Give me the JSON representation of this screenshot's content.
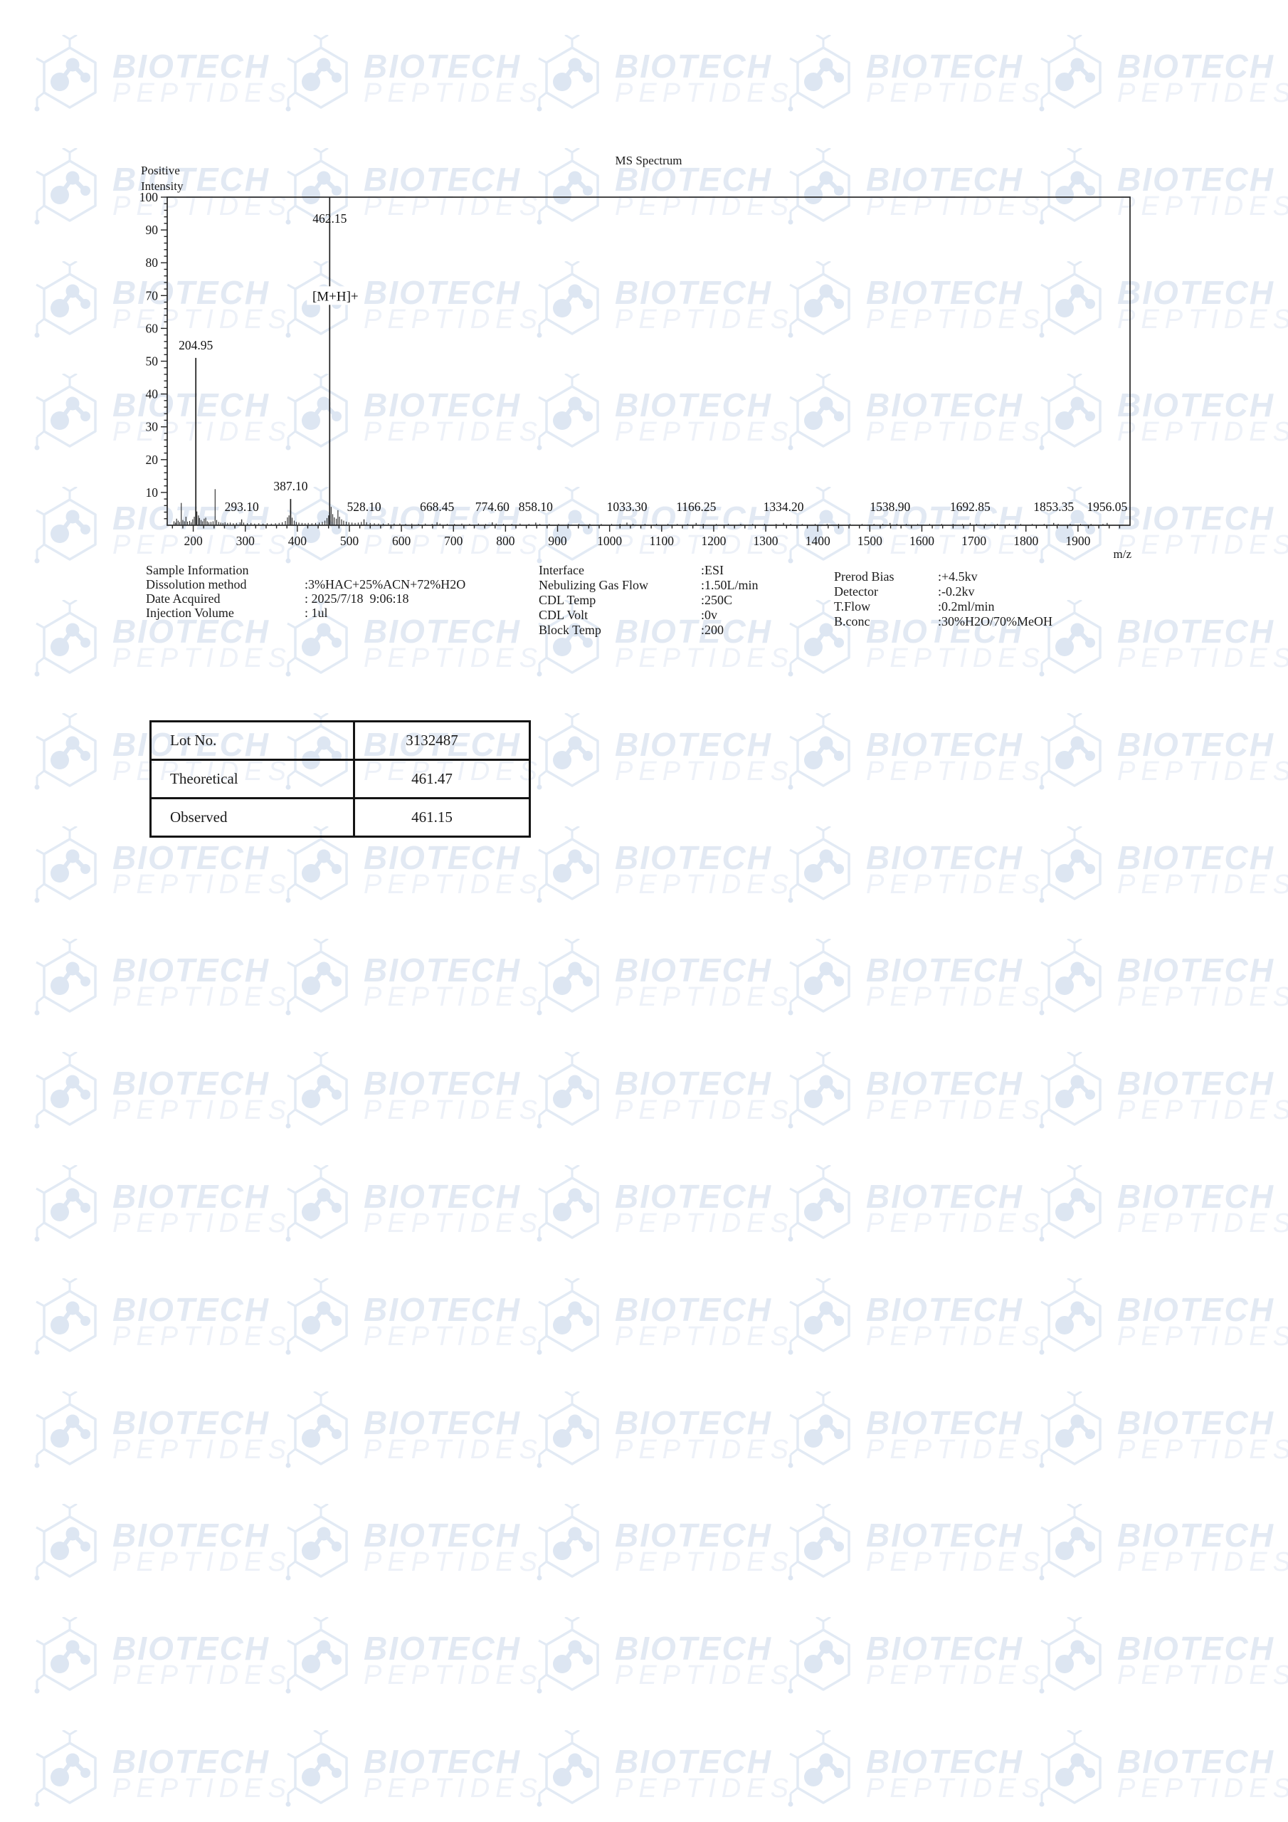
{
  "watermark": {
    "line1": "BIOTECH",
    "line2": "PEPTIDES",
    "icon": "hexagon-molecule-logo",
    "color_brand": "#e2e9f3",
    "color_sub": "#edf1f8",
    "color_icon_stroke": "#e2eaf4",
    "color_icon_fill": "#dde6f2"
  },
  "chart_data": {
    "type": "bar",
    "subtype": "mass-spectrum-stick-plot",
    "title": "MS Spectrum",
    "ylabel_line1": "Positive",
    "ylabel_line2": "Intensity",
    "xlabel": "m/z",
    "xlim": [
      150,
      2000
    ],
    "ylim": [
      0,
      100
    ],
    "x_major_step": 100,
    "x_minor_step": 20,
    "x_label_range": [
      200,
      1900
    ],
    "y_major_step": 10,
    "y_minor_step": 2,
    "grid": false,
    "legend": "none",
    "peaks": [
      {
        "m": 204.95,
        "i": 51,
        "label": "204.95"
      },
      {
        "m": 293.1,
        "i": 1.8,
        "label": "293.10"
      },
      {
        "m": 387.1,
        "i": 8,
        "label": "387.10"
      },
      {
        "m": 462.15,
        "i": 100,
        "label": "462.15"
      },
      {
        "m": 528.1,
        "i": 1.8,
        "label": "528.10"
      },
      {
        "m": 668.45,
        "i": 0.9,
        "label": "668.45"
      },
      {
        "m": 774.6,
        "i": 0.9,
        "label": "774.60"
      },
      {
        "m": 858.1,
        "i": 0.8,
        "label": "858.10"
      },
      {
        "m": 1033.3,
        "i": 0.8,
        "label": "1033.30"
      },
      {
        "m": 1166.25,
        "i": 0.7,
        "label": "1166.25"
      },
      {
        "m": 1334.2,
        "i": 0.7,
        "label": "1334.20"
      },
      {
        "m": 1538.9,
        "i": 0.7,
        "label": "1538.90"
      },
      {
        "m": 1692.85,
        "i": 0.7,
        "label": "1692.85"
      },
      {
        "m": 1853.35,
        "i": 0.7,
        "label": "1853.35"
      },
      {
        "m": 1956.05,
        "i": 0.7,
        "label": "1956.05"
      }
    ],
    "minor_peaks": [
      [
        163,
        1.2
      ],
      [
        166,
        0.8
      ],
      [
        168,
        2
      ],
      [
        171,
        1.4
      ],
      [
        174,
        1
      ],
      [
        177,
        6.8
      ],
      [
        180,
        1.6
      ],
      [
        183,
        1.2
      ],
      [
        186,
        2.6
      ],
      [
        189,
        1.1
      ],
      [
        193,
        1.3
      ],
      [
        196,
        0.9
      ],
      [
        199,
        1.8
      ],
      [
        202,
        2.6
      ],
      [
        207,
        4.2
      ],
      [
        210,
        3
      ],
      [
        212,
        2.2
      ],
      [
        215,
        1.6
      ],
      [
        218,
        1.2
      ],
      [
        221,
        2
      ],
      [
        224,
        2.3
      ],
      [
        227,
        1.2
      ],
      [
        230,
        0.9
      ],
      [
        234,
        1
      ],
      [
        238,
        1.2
      ],
      [
        242,
        11
      ],
      [
        245,
        1.6
      ],
      [
        249,
        1
      ],
      [
        253,
        0.8
      ],
      [
        257,
        0.7
      ],
      [
        261,
        0.9
      ],
      [
        266,
        0.7
      ],
      [
        271,
        0.8
      ],
      [
        277,
        0.6
      ],
      [
        283,
        0.7
      ],
      [
        290,
        0.9
      ],
      [
        297,
        0.8
      ],
      [
        304,
        0.6
      ],
      [
        311,
        0.7
      ],
      [
        318,
        0.5
      ],
      [
        326,
        0.6
      ],
      [
        334,
        0.5
      ],
      [
        342,
        0.6
      ],
      [
        350,
        0.5
      ],
      [
        358,
        0.6
      ],
      [
        365,
        0.7
      ],
      [
        371,
        0.9
      ],
      [
        377,
        1.3
      ],
      [
        381,
        2.4
      ],
      [
        384,
        3
      ],
      [
        390,
        2.3
      ],
      [
        394,
        1.4
      ],
      [
        398,
        1
      ],
      [
        403,
        0.8
      ],
      [
        409,
        0.7
      ],
      [
        415,
        0.6
      ],
      [
        421,
        0.7
      ],
      [
        428,
        0.6
      ],
      [
        435,
        0.7
      ],
      [
        442,
        0.8
      ],
      [
        448,
        1
      ],
      [
        453,
        1.4
      ],
      [
        457,
        2.2
      ],
      [
        460,
        3
      ],
      [
        465,
        5.6
      ],
      [
        468,
        3.4
      ],
      [
        471,
        2.4
      ],
      [
        475,
        2
      ],
      [
        478,
        4.6
      ],
      [
        481,
        2.6
      ],
      [
        485,
        1.8
      ],
      [
        489,
        1.4
      ],
      [
        494,
        1.1
      ],
      [
        499,
        0.9
      ],
      [
        505,
        0.8
      ],
      [
        511,
        0.7
      ],
      [
        517,
        0.8
      ],
      [
        523,
        1
      ],
      [
        533,
        0.9
      ],
      [
        540,
        0.7
      ],
      [
        548,
        0.6
      ],
      [
        556,
        0.5
      ],
      [
        565,
        0.5
      ],
      [
        575,
        0.6
      ],
      [
        586,
        0.5
      ],
      [
        597,
        0.5
      ],
      [
        608,
        0.4
      ],
      [
        620,
        0.5
      ],
      [
        633,
        0.4
      ],
      [
        646,
        0.5
      ],
      [
        659,
        0.4
      ],
      [
        674,
        0.5
      ],
      [
        688,
        0.4
      ],
      [
        702,
        0.4
      ],
      [
        716,
        0.5
      ],
      [
        731,
        0.4
      ],
      [
        748,
        0.5
      ],
      [
        762,
        0.4
      ],
      [
        782,
        0.5
      ],
      [
        796,
        0.4
      ],
      [
        812,
        0.4
      ],
      [
        828,
        0.5
      ],
      [
        845,
        0.4
      ],
      [
        866,
        0.4
      ],
      [
        884,
        0.4
      ],
      [
        902,
        0.4
      ],
      [
        921,
        0.4
      ],
      [
        941,
        0.4
      ],
      [
        962,
        0.4
      ],
      [
        984,
        0.4
      ],
      [
        1004,
        0.4
      ],
      [
        1020,
        0.4
      ],
      [
        1045,
        0.4
      ],
      [
        1068,
        0.4
      ],
      [
        1090,
        0.4
      ],
      [
        1112,
        0.4
      ],
      [
        1130,
        0.4
      ],
      [
        1150,
        0.4
      ],
      [
        1180,
        0.4
      ],
      [
        1205,
        0.4
      ],
      [
        1228,
        0.4
      ],
      [
        1252,
        0.4
      ],
      [
        1275,
        0.4
      ],
      [
        1298,
        0.4
      ],
      [
        1320,
        0.4
      ],
      [
        1348,
        0.4
      ],
      [
        1370,
        0.4
      ],
      [
        1395,
        0.4
      ],
      [
        1418,
        0.4
      ],
      [
        1440,
        0.4
      ],
      [
        1462,
        0.4
      ],
      [
        1485,
        0.4
      ],
      [
        1508,
        0.4
      ],
      [
        1525,
        0.4
      ],
      [
        1552,
        0.4
      ],
      [
        1570,
        0.4
      ],
      [
        1592,
        0.4
      ],
      [
        1615,
        0.4
      ],
      [
        1638,
        0.4
      ],
      [
        1660,
        0.4
      ],
      [
        1678,
        0.4
      ],
      [
        1705,
        0.4
      ],
      [
        1722,
        0.4
      ],
      [
        1745,
        0.4
      ],
      [
        1768,
        0.4
      ],
      [
        1790,
        0.4
      ],
      [
        1812,
        0.4
      ],
      [
        1835,
        0.4
      ],
      [
        1862,
        0.4
      ],
      [
        1885,
        0.4
      ],
      [
        1905,
        0.4
      ],
      [
        1925,
        0.4
      ],
      [
        1948,
        0.4
      ]
    ],
    "annotations": [
      {
        "text": "[M+H]+",
        "m": 462.15,
        "level": 70
      }
    ]
  },
  "sample_info": {
    "heading": "Sample Information",
    "rows": [
      {
        "label": "Dissolution method",
        "value": ":3%HAC+25%ACN+72%H2O"
      },
      {
        "label": "Date Acquired",
        "value": ": 2025/7/18  9:06:18"
      },
      {
        "label": "Injection Volume",
        "value": ": 1ul"
      }
    ]
  },
  "interface_info": {
    "rows": [
      {
        "label": "Interface",
        "value": ":ESI"
      },
      {
        "label": "Nebulizing Gas Flow",
        "value": ":1.50L/min"
      },
      {
        "label": "CDL Temp",
        "value": ":250C"
      },
      {
        "label": "CDL Volt",
        "value": ":0v"
      },
      {
        "label": "Block Temp",
        "value": ":200"
      }
    ]
  },
  "instrument_info": {
    "rows": [
      {
        "label": "Prerod Bias",
        "value": ":+4.5kv"
      },
      {
        "label": "Detector",
        "value": ":-0.2kv"
      },
      {
        "label": "T.Flow",
        "value": ":0.2ml/min"
      },
      {
        "label": "B.conc",
        "value": ":30%H2O/70%MeOH"
      }
    ]
  },
  "results_table": {
    "rows": [
      {
        "label": "Lot No.",
        "value": "3132487"
      },
      {
        "label": "Theoretical",
        "value": "461.47"
      },
      {
        "label": "Observed",
        "value": "461.15"
      }
    ]
  }
}
